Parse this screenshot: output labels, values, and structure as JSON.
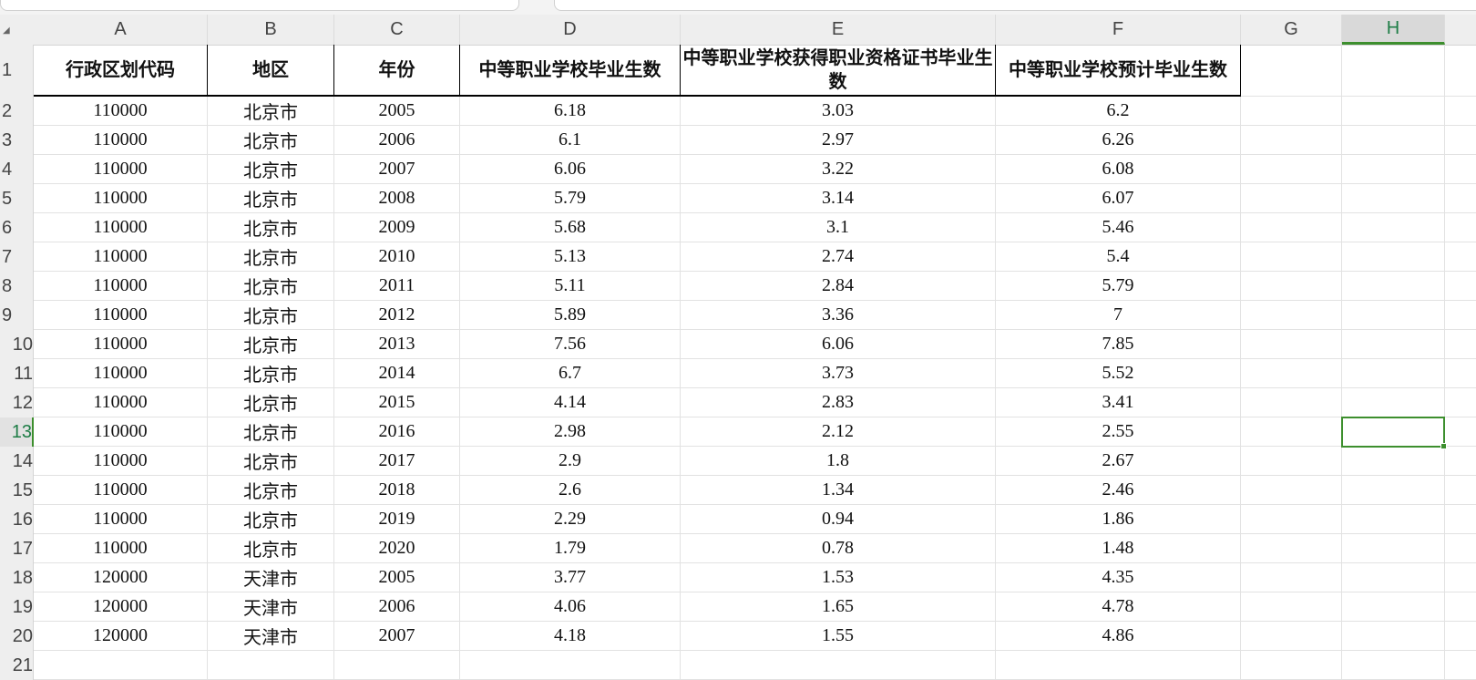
{
  "columns": [
    "A",
    "B",
    "C",
    "D",
    "E",
    "F",
    "G",
    "H",
    ""
  ],
  "selected_cell": "H13",
  "accent_color": "#3d8f2e",
  "headers": [
    "行政区划代码",
    "地区",
    "年份",
    "中等职业学校毕业生数",
    "中等职业学校获得职业资格证书毕业生数",
    "中等职业学校预计毕业生数"
  ],
  "rows": [
    [
      "110000",
      "北京市",
      "2005",
      "6.18",
      "3.03",
      "6.2"
    ],
    [
      "110000",
      "北京市",
      "2006",
      "6.1",
      "2.97",
      "6.26"
    ],
    [
      "110000",
      "北京市",
      "2007",
      "6.06",
      "3.22",
      "6.08"
    ],
    [
      "110000",
      "北京市",
      "2008",
      "5.79",
      "3.14",
      "6.07"
    ],
    [
      "110000",
      "北京市",
      "2009",
      "5.68",
      "3.1",
      "5.46"
    ],
    [
      "110000",
      "北京市",
      "2010",
      "5.13",
      "2.74",
      "5.4"
    ],
    [
      "110000",
      "北京市",
      "2011",
      "5.11",
      "2.84",
      "5.79"
    ],
    [
      "110000",
      "北京市",
      "2012",
      "5.89",
      "3.36",
      "7"
    ],
    [
      "110000",
      "北京市",
      "2013",
      "7.56",
      "6.06",
      "7.85"
    ],
    [
      "110000",
      "北京市",
      "2014",
      "6.7",
      "3.73",
      "5.52"
    ],
    [
      "110000",
      "北京市",
      "2015",
      "4.14",
      "2.83",
      "3.41"
    ],
    [
      "110000",
      "北京市",
      "2016",
      "2.98",
      "2.12",
      "2.55"
    ],
    [
      "110000",
      "北京市",
      "2017",
      "2.9",
      "1.8",
      "2.67"
    ],
    [
      "110000",
      "北京市",
      "2018",
      "2.6",
      "1.34",
      "2.46"
    ],
    [
      "110000",
      "北京市",
      "2019",
      "2.29",
      "0.94",
      "1.86"
    ],
    [
      "110000",
      "北京市",
      "2020",
      "1.79",
      "0.78",
      "1.48"
    ],
    [
      "120000",
      "天津市",
      "2005",
      "3.77",
      "1.53",
      "4.35"
    ],
    [
      "120000",
      "天津市",
      "2006",
      "4.06",
      "1.65",
      "4.78"
    ],
    [
      "120000",
      "天津市",
      "2007",
      "4.18",
      "1.55",
      "4.86"
    ]
  ],
  "row_numbers": [
    "1",
    "2",
    "3",
    "4",
    "5",
    "6",
    "7",
    "8",
    "9",
    "10",
    "11",
    "12",
    "13",
    "14",
    "15",
    "16",
    "17",
    "18",
    "19",
    "20",
    "21"
  ]
}
